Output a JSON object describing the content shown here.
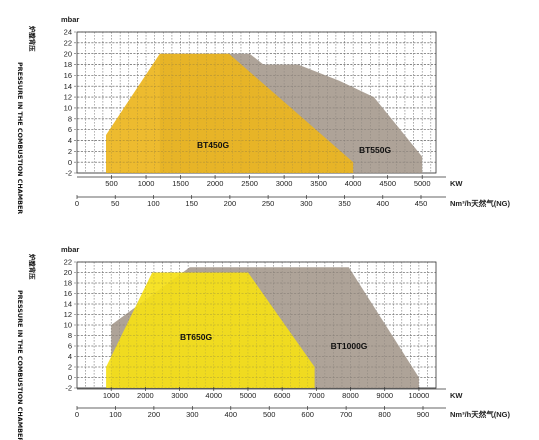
{
  "chart_data": [
    {
      "type": "area",
      "side_label_cn": "炉膛背压",
      "side_label_en": "PRESSURE IN THE COMBUSTION CHAMBER",
      "y_unit": "mbar",
      "x_unit_kw": "KW",
      "x_unit_gas": "Nm³/h天然气(NG)",
      "ylim": [
        -2,
        24
      ],
      "y_ticks": [
        -2,
        0,
        2,
        4,
        6,
        8,
        10,
        12,
        14,
        16,
        18,
        20,
        22,
        24
      ],
      "xlim_kw": [
        0,
        5200
      ],
      "x_ticks_kw": [
        500,
        1000,
        1500,
        2000,
        2500,
        3000,
        3500,
        4000,
        4500,
        5000
      ],
      "x_ticks_gas": [
        0,
        50,
        100,
        150,
        200,
        250,
        300,
        350,
        400,
        450
      ],
      "grid": true,
      "series": [
        {
          "name": "BT550G",
          "color": "#a79b8f",
          "points": [
            [
              1200,
              -2
            ],
            [
              1200,
              20
            ],
            [
              2500,
              20
            ],
            [
              2700,
              18
            ],
            [
              3200,
              18
            ],
            [
              3800,
              15
            ],
            [
              4300,
              12
            ],
            [
              5000,
              1
            ],
            [
              5000,
              -2
            ]
          ]
        },
        {
          "name": "BT450G",
          "color": "#ecb51d",
          "points": [
            [
              420,
              -2
            ],
            [
              420,
              5
            ],
            [
              1200,
              20
            ],
            [
              2200,
              20
            ],
            [
              4000,
              0
            ],
            [
              4000,
              -2
            ]
          ]
        }
      ]
    },
    {
      "type": "area",
      "side_label_cn": "炉膛背压",
      "side_label_en": "PRESSURE IN THE COMBUSTION CHAMBER",
      "y_unit": "mbar",
      "x_unit_kw": "KW",
      "x_unit_gas": "Nm³/h天然气(NG)",
      "ylim": [
        -2,
        22
      ],
      "y_ticks": [
        -2,
        0,
        2,
        4,
        6,
        8,
        10,
        12,
        14,
        16,
        18,
        20,
        22
      ],
      "xlim_kw": [
        0,
        10500
      ],
      "x_ticks_kw": [
        1000,
        2000,
        3000,
        4000,
        5000,
        6000,
        7000,
        8000,
        9000,
        10000
      ],
      "x_ticks_gas": [
        0,
        100,
        200,
        300,
        400,
        500,
        600,
        700,
        800,
        900
      ],
      "grid": true,
      "series": [
        {
          "name": "BT1000G",
          "color": "#a79b8f",
          "points": [
            [
              1000,
              -2
            ],
            [
              1000,
              10
            ],
            [
              3300,
              21
            ],
            [
              7950,
              21
            ],
            [
              10000,
              0
            ],
            [
              10000,
              -2
            ]
          ]
        },
        {
          "name": "BT650G",
          "color": "#f5df16",
          "points": [
            [
              850,
              -2
            ],
            [
              850,
              2
            ],
            [
              2200,
              20
            ],
            [
              5000,
              20
            ],
            [
              6950,
              2
            ],
            [
              6950,
              -2
            ]
          ]
        }
      ]
    }
  ]
}
